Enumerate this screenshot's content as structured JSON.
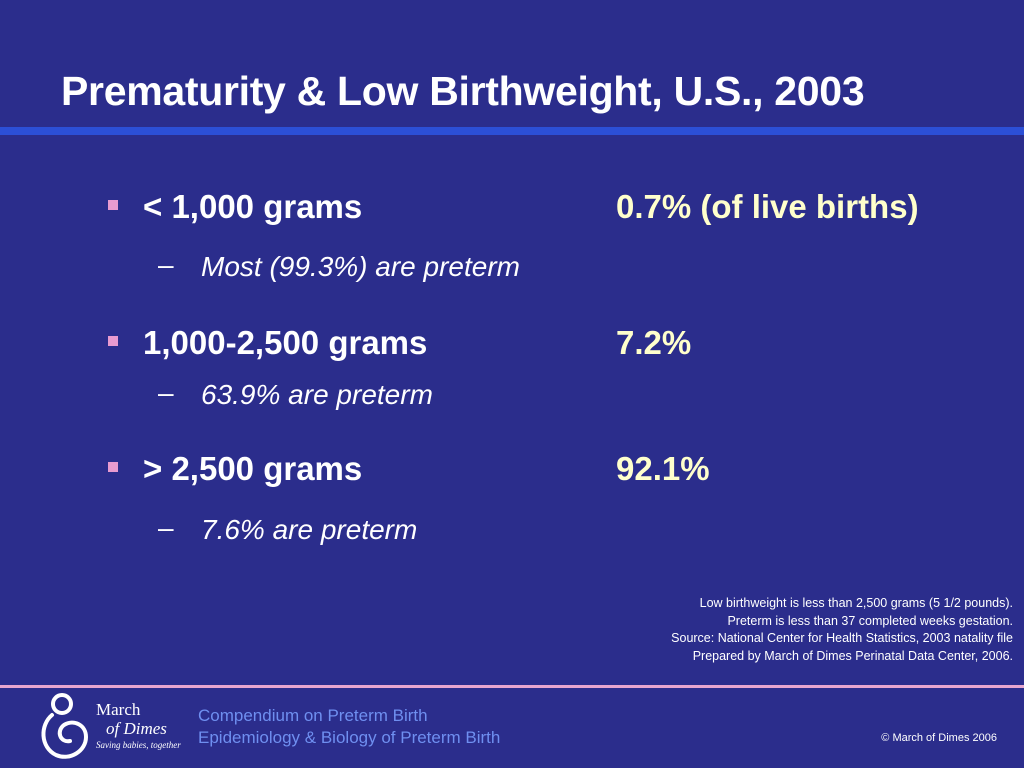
{
  "slide": {
    "title": "Prematurity & Low Birthweight, U.S., 2003"
  },
  "bullets": [
    {
      "label": "< 1,000 grams",
      "value": "0.7% (of live births)",
      "sub": "Most (99.3%) are preterm"
    },
    {
      "label": "1,000-2,500 grams",
      "value": "7.2%",
      "sub": "63.9% are preterm"
    },
    {
      "label": "> 2,500 grams",
      "value": "92.1%",
      "sub": "7.6% are preterm"
    }
  ],
  "sub_dash": "–",
  "notes": [
    "Low birthweight is less than 2,500 grams (5 1/2 pounds).",
    "Preterm is less than 37 completed weeks gestation.",
    "Source: National Center for Health Statistics, 2003 natality file",
    "Prepared by March of Dimes Perinatal Data Center, 2006."
  ],
  "footer": {
    "logo_line1": "March",
    "logo_line2": "of Dimes",
    "logo_tagline": "Saving babies, together",
    "course_line1": "Compendium on Preterm Birth",
    "course_line2": "Epidemiology & Biology of Preterm Birth",
    "copyright": "©  March of Dimes 2006"
  },
  "colors": {
    "background": "#2b2d8c",
    "title_rule": "#2c4fd6",
    "footer_rule": "#e7a6cf",
    "bullet": "#e89bd0",
    "value_text": "#ffffcc",
    "footer_text": "#6f8ff0"
  },
  "icons": {
    "bullet": "square-bullet-icon",
    "logo": "mother-child-logo-icon"
  }
}
